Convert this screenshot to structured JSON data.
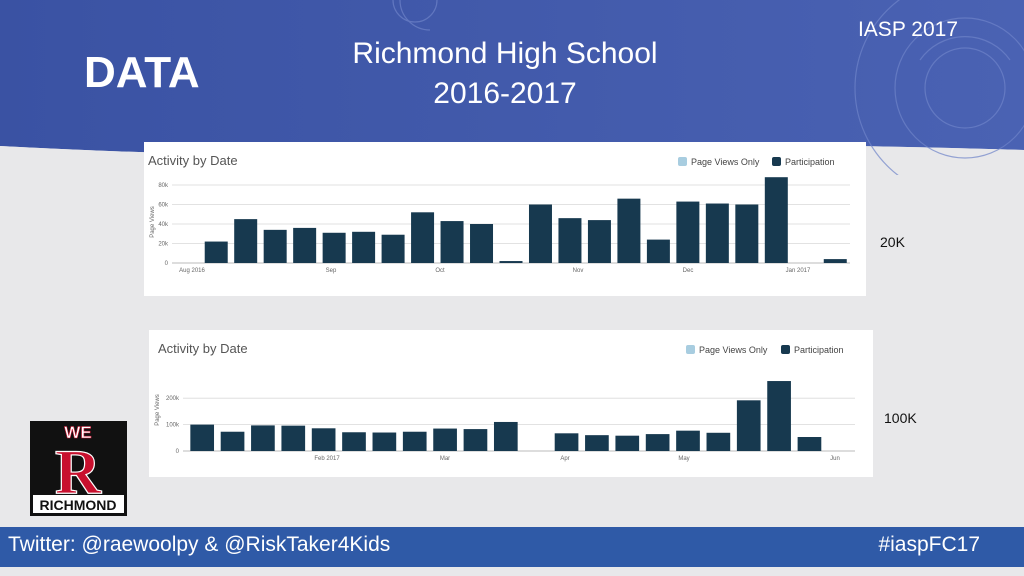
{
  "header": {
    "slide_title": "DATA",
    "school_title": "Richmond High School",
    "school_years": "2016-2017",
    "event": "IASP 2017"
  },
  "colors": {
    "header_blue": "#3d56a6",
    "footer_blue": "#2f5aa7",
    "participation": "#17394f",
    "page_views_only": "#a8cde0"
  },
  "chart_data": [
    {
      "type": "bar",
      "title": "Activity by Date",
      "ylabel": "Page Views",
      "legend": [
        "Page Views Only",
        "Participation"
      ],
      "legend_placement": "top-right",
      "grid": true,
      "y_ticks": [
        "0",
        "20k",
        "40k",
        "60k",
        "80k"
      ],
      "ylim": [
        0,
        80000
      ],
      "x_tick_labels": [
        "Aug 2016",
        "Sep",
        "Oct",
        "Nov",
        "Dec",
        "Jan 2017"
      ],
      "series": [
        {
          "name": "Participation",
          "values": [
            0,
            22000,
            45000,
            34000,
            36000,
            31000,
            32000,
            29000,
            52000,
            43000,
            40000,
            2000,
            60000,
            46000,
            44000,
            66000,
            24000,
            63000,
            61000,
            60000,
            88000,
            0,
            4000
          ]
        }
      ]
    },
    {
      "type": "bar",
      "title": "Activity by Date",
      "ylabel": "Page Views",
      "legend": [
        "Page Views Only",
        "Participation"
      ],
      "legend_placement": "top-right",
      "grid": true,
      "y_ticks": [
        "0",
        "100k",
        "200k"
      ],
      "ylim": [
        0,
        250000
      ],
      "x_tick_labels": [
        "Feb 2017",
        "Mar",
        "Apr",
        "May",
        "Jun"
      ],
      "series": [
        {
          "name": "Participation",
          "values": [
            100000,
            73000,
            97000,
            96000,
            86000,
            71000,
            70000,
            73000,
            85000,
            83000,
            110000,
            0,
            67000,
            60000,
            58000,
            64000,
            77000,
            69000,
            192000,
            265000,
            53000,
            0
          ]
        }
      ]
    }
  ],
  "side_labels": {
    "first": "20K",
    "second": "100K"
  },
  "logo": {
    "top_text": "WE",
    "letter": "R",
    "bottom_text": "RICHMOND"
  },
  "footer": {
    "twitter": "Twitter: @raewoolpy & @RiskTaker4Kids",
    "hashtag": "#iaspFC17"
  }
}
